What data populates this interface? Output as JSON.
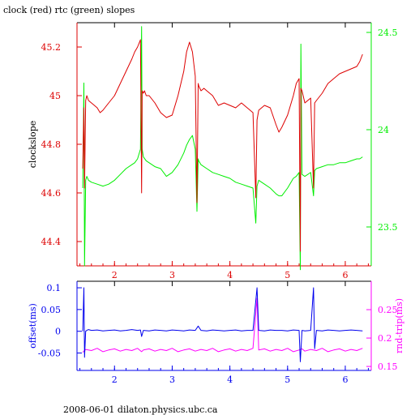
{
  "title": "clock (red) rtc (green) slopes",
  "footer": "2008-06-01 dilaton.physics.ubc.ca",
  "colors": {
    "clock": "#dd0000",
    "rtc": "#00ee00",
    "offset": "#0000ee",
    "rndtrip": "#ff00ff",
    "axis": "#000000"
  },
  "chart_data": [
    {
      "type": "line",
      "title": "clock (red) rtc (green) slopes",
      "ylabel": "clockslope",
      "ylim": [
        44.3,
        45.3
      ],
      "yticks": [
        44.4,
        44.6,
        44.8,
        45,
        45.2
      ],
      "y2lim": [
        23.3,
        24.55
      ],
      "y2ticks": [
        23.5,
        24,
        24.5
      ],
      "xlim": [
        1.35,
        6.45
      ],
      "xticks": [
        2,
        3,
        4,
        5,
        6
      ],
      "series": [
        {
          "name": "clock",
          "axis": "left",
          "x": [
            1.45,
            1.47,
            1.48,
            1.5,
            1.52,
            1.55,
            1.6,
            1.65,
            1.7,
            1.75,
            1.8,
            1.9,
            2.0,
            2.1,
            2.2,
            2.3,
            2.35,
            2.4,
            2.45,
            2.47,
            2.48,
            2.5,
            2.52,
            2.55,
            2.6,
            2.7,
            2.8,
            2.9,
            3.0,
            3.1,
            3.2,
            3.25,
            3.3,
            3.35,
            3.4,
            3.43,
            3.45,
            3.46,
            3.5,
            3.55,
            3.6,
            3.7,
            3.8,
            3.9,
            4.0,
            4.1,
            4.2,
            4.3,
            4.4,
            4.45,
            4.47,
            4.5,
            4.6,
            4.7,
            4.8,
            4.85,
            4.9,
            5.0,
            5.1,
            5.15,
            5.2,
            5.22,
            5.23,
            5.25,
            5.3,
            5.4,
            5.45,
            5.47,
            5.5,
            5.6,
            5.7,
            5.8,
            5.9,
            6.0,
            6.1,
            6.2,
            6.25,
            6.3
          ],
          "y": [
            44.7,
            44.95,
            44.62,
            44.98,
            45.0,
            44.98,
            44.97,
            44.96,
            44.95,
            44.93,
            44.94,
            44.97,
            45.0,
            45.05,
            45.1,
            45.15,
            45.18,
            45.2,
            45.23,
            44.6,
            45.02,
            45.01,
            45.02,
            45.0,
            45.0,
            44.97,
            44.93,
            44.91,
            44.92,
            45.0,
            45.1,
            45.18,
            45.22,
            45.18,
            45.08,
            44.56,
            45.05,
            45.04,
            45.02,
            45.03,
            45.02,
            45.0,
            44.96,
            44.97,
            44.96,
            44.95,
            44.97,
            44.95,
            44.93,
            44.58,
            44.9,
            44.94,
            44.96,
            44.95,
            44.88,
            44.85,
            44.87,
            44.92,
            45.0,
            45.05,
            45.07,
            44.36,
            45.03,
            45.02,
            44.97,
            44.99,
            44.62,
            44.97,
            44.98,
            45.01,
            45.05,
            45.07,
            45.09,
            45.1,
            45.11,
            45.12,
            45.14,
            45.17
          ]
        },
        {
          "name": "rtc",
          "axis": "right",
          "x": [
            1.45,
            1.47,
            1.48,
            1.5,
            1.52,
            1.55,
            1.6,
            1.7,
            1.8,
            1.9,
            2.0,
            2.1,
            2.2,
            2.3,
            2.35,
            2.4,
            2.45,
            2.47,
            2.48,
            2.5,
            2.55,
            2.6,
            2.7,
            2.8,
            2.9,
            3.0,
            3.1,
            3.2,
            3.25,
            3.3,
            3.35,
            3.4,
            3.43,
            3.45,
            3.46,
            3.5,
            3.6,
            3.7,
            3.8,
            3.9,
            4.0,
            4.1,
            4.2,
            4.3,
            4.4,
            4.45,
            4.47,
            4.5,
            4.6,
            4.7,
            4.8,
            4.85,
            4.9,
            5.0,
            5.1,
            5.15,
            5.2,
            5.22,
            5.23,
            5.25,
            5.3,
            5.4,
            5.45,
            5.47,
            5.5,
            5.6,
            5.7,
            5.8,
            5.9,
            6.0,
            6.1,
            6.2,
            6.25,
            6.3
          ],
          "y": [
            23.7,
            24.24,
            23.3,
            23.74,
            23.76,
            23.74,
            23.73,
            23.72,
            23.71,
            23.72,
            23.74,
            23.77,
            23.8,
            23.82,
            23.83,
            23.85,
            23.9,
            24.53,
            23.9,
            23.86,
            23.84,
            23.83,
            23.81,
            23.8,
            23.76,
            23.78,
            23.82,
            23.88,
            23.92,
            23.95,
            23.97,
            23.9,
            23.58,
            23.85,
            23.84,
            23.82,
            23.8,
            23.78,
            23.77,
            23.76,
            23.75,
            23.73,
            23.72,
            23.71,
            23.7,
            23.52,
            23.71,
            23.74,
            23.72,
            23.7,
            23.67,
            23.66,
            23.66,
            23.7,
            23.75,
            23.76,
            23.78,
            23.28,
            24.44,
            23.77,
            23.76,
            23.78,
            23.66,
            23.79,
            23.8,
            23.81,
            23.82,
            23.82,
            23.83,
            23.83,
            23.84,
            23.85,
            23.85,
            23.86
          ]
        }
      ]
    },
    {
      "type": "line",
      "ylabel": "offset(ms)",
      "y2label": "rnd-trip(ms)",
      "ylim": [
        -0.09,
        0.115
      ],
      "yticks": [
        -0.05,
        0,
        0.05,
        0.1
      ],
      "y2lim": [
        0.143,
        0.3
      ],
      "y2ticks": [
        0.15,
        0.2,
        0.25
      ],
      "xlim": [
        1.35,
        6.45
      ],
      "xticks": [
        2,
        3,
        4,
        5,
        6
      ],
      "series": [
        {
          "name": "offset",
          "axis": "left",
          "x": [
            1.45,
            1.47,
            1.48,
            1.5,
            1.52,
            1.55,
            1.6,
            1.7,
            1.8,
            1.9,
            2.0,
            2.1,
            2.2,
            2.3,
            2.4,
            2.45,
            2.47,
            2.5,
            2.6,
            2.7,
            2.8,
            2.9,
            3.0,
            3.1,
            3.2,
            3.3,
            3.4,
            3.45,
            3.5,
            3.6,
            3.7,
            3.8,
            3.9,
            4.0,
            4.1,
            4.2,
            4.3,
            4.4,
            4.47,
            4.5,
            4.6,
            4.7,
            4.8,
            4.9,
            5.0,
            5.1,
            5.2,
            5.22,
            5.25,
            5.3,
            5.4,
            5.45,
            5.47,
            5.5,
            5.6,
            5.7,
            5.8,
            5.9,
            6.0,
            6.1,
            6.2,
            6.3
          ],
          "y": [
            0.0,
            0.1,
            -0.06,
            0.0,
            0.002,
            0.004,
            0.002,
            0.003,
            0.001,
            0.002,
            0.003,
            0.001,
            0.002,
            0.004,
            0.002,
            0.003,
            -0.012,
            0.002,
            0.001,
            0.003,
            0.002,
            0.001,
            0.003,
            0.002,
            0.001,
            0.003,
            0.002,
            0.012,
            0.002,
            0.001,
            0.003,
            0.002,
            0.001,
            0.002,
            0.003,
            0.001,
            0.002,
            0.002,
            0.1,
            0.002,
            0.001,
            0.003,
            0.002,
            0.002,
            0.001,
            0.003,
            0.002,
            -0.07,
            0.002,
            0.001,
            0.002,
            0.1,
            -0.04,
            0.002,
            0.001,
            0.003,
            0.002,
            0.001,
            0.002,
            0.003,
            0.002,
            0.001
          ]
        },
        {
          "name": "rnd-trip",
          "axis": "right",
          "x": [
            1.45,
            1.5,
            1.6,
            1.7,
            1.8,
            1.9,
            2.0,
            2.1,
            2.2,
            2.3,
            2.4,
            2.47,
            2.5,
            2.6,
            2.7,
            2.8,
            2.9,
            3.0,
            3.1,
            3.2,
            3.3,
            3.4,
            3.5,
            3.6,
            3.7,
            3.8,
            3.9,
            4.0,
            4.1,
            4.2,
            4.3,
            4.4,
            4.47,
            4.5,
            4.6,
            4.7,
            4.8,
            4.9,
            5.0,
            5.1,
            5.2,
            5.25,
            5.3,
            5.4,
            5.5,
            5.6,
            5.7,
            5.8,
            5.9,
            6.0,
            6.1,
            6.2,
            6.3
          ],
          "y": [
            0.175,
            0.18,
            0.178,
            0.182,
            0.176,
            0.179,
            0.181,
            0.177,
            0.18,
            0.178,
            0.182,
            0.176,
            0.179,
            0.181,
            0.177,
            0.18,
            0.178,
            0.182,
            0.176,
            0.179,
            0.181,
            0.177,
            0.18,
            0.178,
            0.182,
            0.176,
            0.179,
            0.181,
            0.177,
            0.18,
            0.178,
            0.182,
            0.27,
            0.179,
            0.181,
            0.177,
            0.18,
            0.178,
            0.182,
            0.176,
            0.179,
            0.181,
            0.177,
            0.18,
            0.178,
            0.182,
            0.176,
            0.179,
            0.181,
            0.177,
            0.18,
            0.178,
            0.182
          ]
        }
      ]
    }
  ]
}
